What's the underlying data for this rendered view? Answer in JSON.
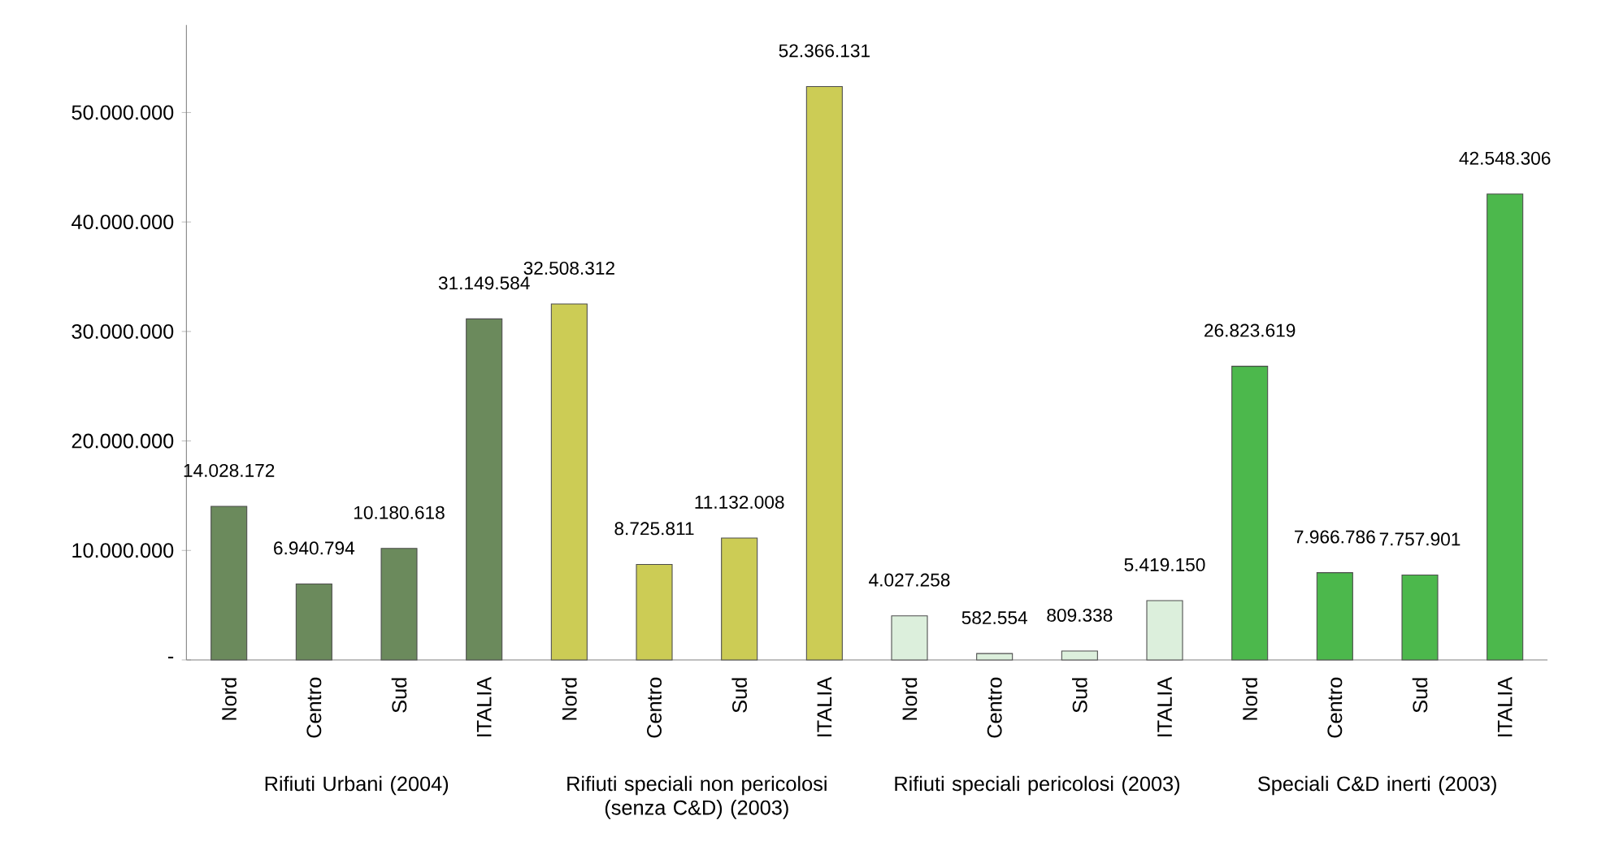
{
  "chart_data": {
    "type": "bar",
    "categories": [
      "Nord",
      "Centro",
      "Sud",
      "ITALIA",
      "Nord",
      "Centro",
      "Sud",
      "ITALIA",
      "Nord",
      "Centro",
      "Sud",
      "ITALIA",
      "Nord",
      "Centro",
      "Sud",
      "ITALIA"
    ],
    "values": [
      14028172,
      6940794,
      10180618,
      31149584,
      32508312,
      8725811,
      11132008,
      52366131,
      4027258,
      582554,
      809338,
      5419150,
      26823619,
      7966786,
      7757901,
      42548306
    ],
    "value_labels": [
      "14.028.172",
      "6.940.794",
      "10.180.618",
      "31.149.584",
      "32.508.312",
      "8.725.811",
      "11.132.008",
      "52.366.131",
      "4.027.258",
      "582.554",
      "809.338",
      "5.419.150",
      "26.823.619",
      "7.966.786",
      "7.757.901",
      "42.548.306"
    ],
    "colors": [
      "#6b8a5c",
      "#6b8a5c",
      "#6b8a5c",
      "#6b8a5c",
      "#cccc55",
      "#cccc55",
      "#cccc55",
      "#cccc55",
      "#dcefdc",
      "#dcefdc",
      "#dcefdc",
      "#dcefdc",
      "#4cb84c",
      "#4cb84c",
      "#4cb84c",
      "#4cb84c"
    ],
    "ylim": [
      0,
      58000000
    ],
    "yticks": [
      {
        "value": 0,
        "label": "-"
      },
      {
        "value": 10000000,
        "label": "10.000.000"
      },
      {
        "value": 20000000,
        "label": "20.000.000"
      },
      {
        "value": 30000000,
        "label": "30.000.000"
      },
      {
        "value": 40000000,
        "label": "40.000.000"
      },
      {
        "value": 50000000,
        "label": "50.000.000"
      }
    ],
    "annotations": [
      "Rifiuti Urbani (2004)",
      "Rifiuti speciali non pericolosi (senza C&D) (2003)",
      "Rifiuti speciali pericolosi (2003)",
      "Speciali C&D inerti (2003)"
    ]
  }
}
